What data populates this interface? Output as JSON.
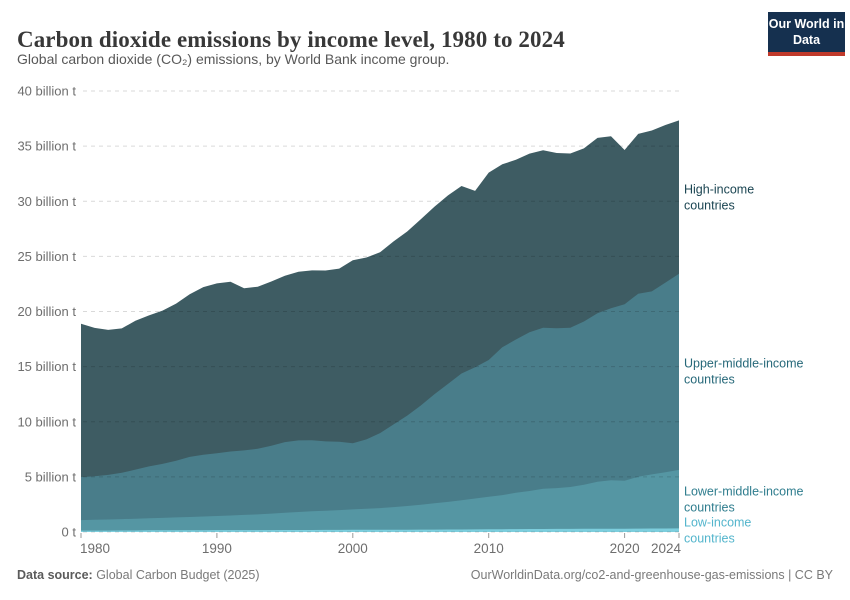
{
  "header": {
    "title": "Carbon dioxide emissions by income level, 1980 to 2024",
    "subtitle": "Global carbon dioxide (CO₂) emissions, by World Bank income group.",
    "logo": {
      "line1": "Our World",
      "line2": "in Data",
      "bg_color": "#15304F",
      "bar_color": "#C0392B"
    }
  },
  "footer": {
    "source_label": "Data source:",
    "source_value": " Global Carbon Budget (2025)",
    "credit": "OurWorldinData.org/co2-and-greenhouse-gas-emissions | CC BY"
  },
  "chart_data": {
    "type": "area",
    "stacked": true,
    "title": "Carbon dioxide emissions by income level, 1980 to 2024",
    "xlabel": "",
    "ylabel": "",
    "ylim": [
      0,
      40
    ],
    "grid": "dashed-horizontal",
    "legend_position": "right-of-areas",
    "x": [
      1980,
      1981,
      1982,
      1983,
      1984,
      1985,
      1986,
      1987,
      1988,
      1989,
      1990,
      1991,
      1992,
      1993,
      1994,
      1995,
      1996,
      1997,
      1998,
      1999,
      2000,
      2001,
      2002,
      2003,
      2004,
      2005,
      2006,
      2007,
      2008,
      2009,
      2010,
      2011,
      2012,
      2013,
      2014,
      2015,
      2016,
      2017,
      2018,
      2019,
      2020,
      2021,
      2022,
      2023,
      2024
    ],
    "unit": "billion t",
    "yticks": [
      {
        "value": 0,
        "label": "0 t"
      },
      {
        "value": 5,
        "label": "5 billion t"
      },
      {
        "value": 10,
        "label": "10 billion t"
      },
      {
        "value": 15,
        "label": "15 billion t"
      },
      {
        "value": 20,
        "label": "20 billion t"
      },
      {
        "value": 25,
        "label": "25 billion t"
      },
      {
        "value": 30,
        "label": "30 billion t"
      },
      {
        "value": 35,
        "label": "35 billion t"
      },
      {
        "value": 40,
        "label": "40 billion t"
      }
    ],
    "xticks": [
      1980,
      1990,
      2000,
      2010,
      2020,
      2024
    ],
    "series": [
      {
        "id": "low-income",
        "label": "Low-income countries",
        "label_lines": [
          "Low-income",
          "countries"
        ],
        "color": "#7DCEDD",
        "label_color": "#53B5CC",
        "values": [
          0.13,
          0.13,
          0.13,
          0.14,
          0.14,
          0.15,
          0.15,
          0.15,
          0.16,
          0.16,
          0.17,
          0.17,
          0.17,
          0.17,
          0.17,
          0.18,
          0.18,
          0.18,
          0.19,
          0.19,
          0.2,
          0.2,
          0.2,
          0.21,
          0.21,
          0.22,
          0.22,
          0.23,
          0.23,
          0.24,
          0.25,
          0.25,
          0.26,
          0.27,
          0.27,
          0.28,
          0.28,
          0.29,
          0.3,
          0.3,
          0.3,
          0.31,
          0.32,
          0.32,
          0.33
        ]
      },
      {
        "id": "lower-middle-income",
        "label": "Lower-middle-income countries",
        "label_lines": [
          "Lower-middle-income",
          "countries"
        ],
        "color": "#5596A3",
        "label_color": "#2F7D8E",
        "values": [
          0.95,
          0.98,
          1.0,
          1.03,
          1.07,
          1.1,
          1.13,
          1.17,
          1.2,
          1.25,
          1.28,
          1.33,
          1.38,
          1.43,
          1.5,
          1.57,
          1.63,
          1.7,
          1.73,
          1.8,
          1.85,
          1.9,
          1.97,
          2.05,
          2.15,
          2.25,
          2.38,
          2.5,
          2.65,
          2.8,
          2.95,
          3.1,
          3.3,
          3.45,
          3.65,
          3.7,
          3.8,
          4.0,
          4.25,
          4.4,
          4.35,
          4.7,
          4.9,
          5.1,
          5.3
        ]
      },
      {
        "id": "upper-middle-income",
        "label": "Upper-middle-income countries",
        "label_lines": [
          "Upper-middle-income",
          "countries"
        ],
        "color": "#497D8A",
        "label_color": "#266879",
        "values": [
          3.9,
          3.95,
          4.05,
          4.2,
          4.45,
          4.7,
          4.9,
          5.15,
          5.45,
          5.6,
          5.7,
          5.8,
          5.85,
          5.95,
          6.15,
          6.4,
          6.5,
          6.45,
          6.3,
          6.2,
          6.0,
          6.3,
          6.8,
          7.5,
          8.2,
          9.0,
          9.9,
          10.7,
          11.5,
          11.9,
          12.4,
          13.4,
          13.9,
          14.4,
          14.6,
          14.5,
          14.45,
          14.8,
          15.3,
          15.6,
          16.0,
          16.6,
          16.6,
          17.2,
          17.8
        ]
      },
      {
        "id": "high-income",
        "label": "High-income countries",
        "label_lines": [
          "High-income",
          "countries"
        ],
        "color": "#3E5C63",
        "label_color": "#1B4552",
        "values": [
          13.9,
          13.45,
          13.15,
          13.1,
          13.5,
          13.7,
          13.9,
          14.25,
          14.75,
          15.2,
          15.4,
          15.4,
          14.7,
          14.7,
          14.9,
          15.1,
          15.3,
          15.4,
          15.5,
          15.7,
          16.6,
          16.5,
          16.4,
          16.6,
          16.7,
          16.9,
          17.0,
          17.1,
          17.0,
          16.0,
          17.0,
          16.6,
          16.3,
          16.2,
          16.1,
          15.9,
          15.8,
          15.7,
          15.9,
          15.6,
          14.0,
          14.5,
          14.6,
          14.3,
          13.9
        ]
      }
    ]
  }
}
